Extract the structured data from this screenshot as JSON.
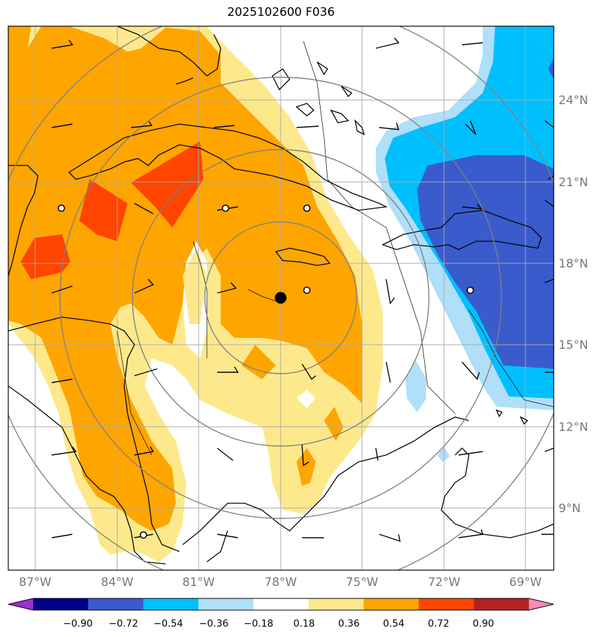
{
  "title": "2025102600 F036",
  "colors": {
    "pos_018_036": "#fde98c",
    "pos_036_054": "#ffa500",
    "pos_054_072": "#ff4500",
    "neg_018_036": "#b0dffa",
    "neg_036_054": "#00bfff",
    "neg_054_072": "#3a5bcc",
    "coast": "#000000",
    "grid": "#aaaaaa",
    "ring": "#808080",
    "center": "#000000"
  },
  "lat_labels": [
    "24°N",
    "21°N",
    "18°N",
    "15°N",
    "12°N",
    "9°N"
  ],
  "lon_labels": [
    "87°W",
    "84°W",
    "81°W",
    "78°W",
    "75°W",
    "72°W",
    "69°W"
  ],
  "colorbar": {
    "colors": [
      "#9932cc",
      "#00008b",
      "#3a5bcc",
      "#00bfff",
      "#b0dffa",
      "#ffffff",
      "#fde98c",
      "#ffa500",
      "#ff4500",
      "#b22222",
      "#ff88bb"
    ],
    "ticks": [
      "−0.90",
      "−0.72",
      "−0.54",
      "−0.36",
      "−0.18",
      "0.18",
      "0.36",
      "0.54",
      "0.72",
      "0.90"
    ]
  }
}
